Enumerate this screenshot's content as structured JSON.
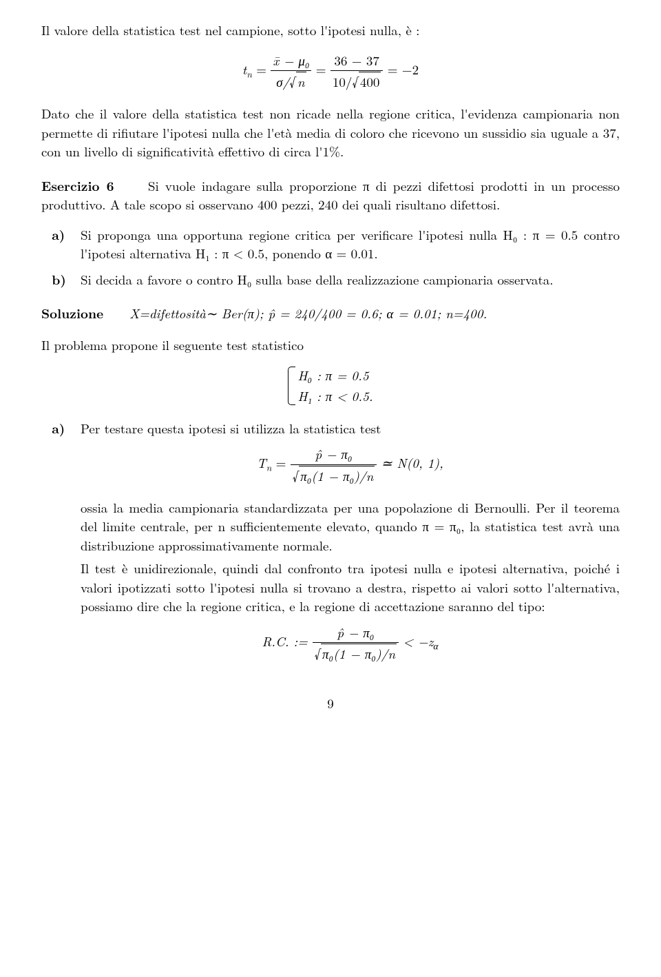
{
  "intro": {
    "line1": "Il valore della statistica test nel campione, sotto l'ipotesi nulla, è :",
    "eq_left": "t",
    "eq_left_sub": "n",
    "eq_eq": " = ",
    "frac1_num": "x̄ − μ₀",
    "frac1_den_pre": "σ/",
    "frac1_den_rad": "n",
    "frac2_num": "36 − 37",
    "frac2_den_pre": "10/",
    "frac2_den_rad": "400",
    "eq_rhs": " = −2",
    "p2": "Dato che il valore della statistica test non ricade nella regione critica, l'evidenza campionaria non permette di rifiutare l'ipotesi nulla che l'età media di coloro che ricevono un sussidio sia uguale a 37, con un livello di significatività effettivo di circa l'1%."
  },
  "esercizio": {
    "label": "Esercizio 6",
    "text": "Si vuole indagare sulla proporzione π di pezzi difettosi prodotti in un processo produttivo. A tale scopo si osservano 400 pezzi, 240 dei quali risultano difettosi."
  },
  "items_a": {
    "marker": "a)",
    "text": "Si proponga una opportuna regione critica per verificare l'ipotesi nulla H₀ : π = 0.5 contro l'ipotesi alternativa H₁ : π < 0.5, ponendo α = 0.01."
  },
  "items_b": {
    "marker": "b)",
    "text": "Si decida a favore o contro H₀ sulla base della realizzazione campionaria osservata."
  },
  "soluzione": {
    "label": "Soluzione",
    "text": "X=difettosità∼ Ber(π);    p̂ = 240/400 = 0.6;    α = 0.01;    n=400."
  },
  "test_intro": "Il problema propone il seguente test statistico",
  "cases": {
    "h0": "H₀ :  π = 0.5",
    "h1": "H₁ :  π < 0.5."
  },
  "sol_a": {
    "marker": "a)",
    "lead": "Per testare questa ipotesi si utilizza la statistica test",
    "eq_lhs_T": "T",
    "eq_lhs_sub": "n",
    "eq_lhs_eq": " = ",
    "eq_num": "p̂ − π₀",
    "eq_den": "π₀(1 − π₀)/n",
    "eq_approx": " ≃ N(0, 1),",
    "para1": "ossia la media campionaria standardizzata per una popolazione di Bernoulli. Per il teorema del limite centrale, per n sufficientemente elevato, quando π = π₀, la statistica test avrà una distribuzione approssimativamente normale.",
    "para2": "Il test è unidirezionale, quindi dal confronto tra ipotesi nulla e ipotesi alternativa, poiché i valori ipotizzati sotto l'ipotesi nulla si trovano a destra, rispetto ai valori sotto l'alternativa, possiamo dire che la regione critica, e la regione di accettazione saranno del tipo:",
    "eq2_lhs": "R.C. := ",
    "eq2_num": "p̂ − π₀",
    "eq2_den": "π₀(1 − π₀)/n",
    "eq2_rhs_lt": " < −z",
    "eq2_rhs_sub": "α"
  },
  "pagenum": "9"
}
